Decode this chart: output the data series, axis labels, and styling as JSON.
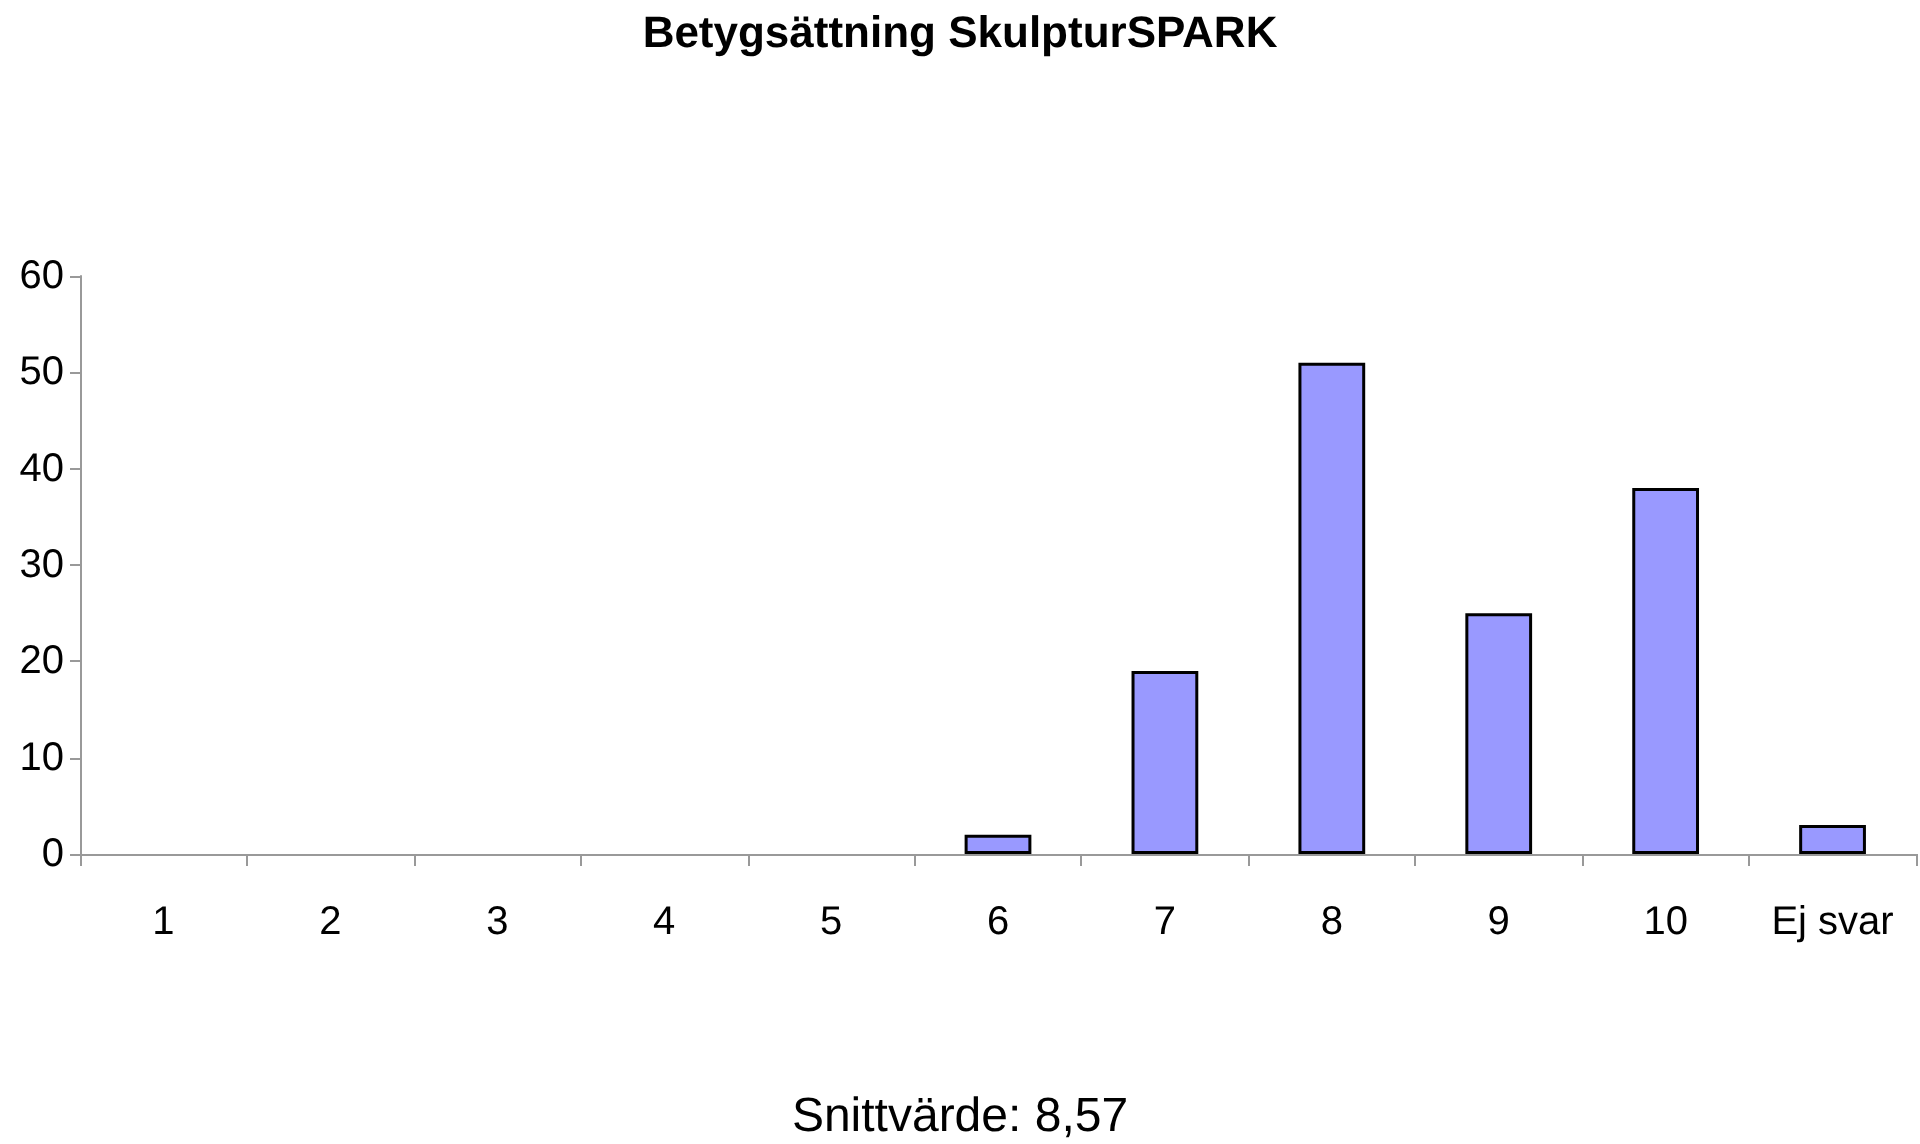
{
  "chart_data": {
    "type": "bar",
    "title": "Betygsättning SkulpturSPARK",
    "categories": [
      "1",
      "2",
      "3",
      "4",
      "5",
      "6",
      "7",
      "8",
      "9",
      "10",
      "Ej svar"
    ],
    "values": [
      0,
      0,
      0,
      0,
      0,
      2,
      19,
      51,
      25,
      38,
      3
    ],
    "color": "#9999ff",
    "ylim": [
      0,
      60
    ],
    "yticks": [
      0,
      10,
      20,
      30,
      40,
      50,
      60
    ],
    "grid": false,
    "annotations": [
      "Snittvärde: 8,57"
    ]
  }
}
